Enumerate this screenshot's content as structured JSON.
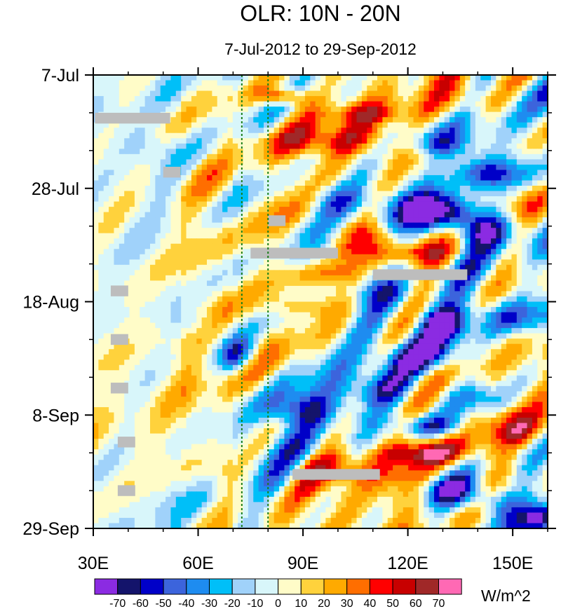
{
  "chart_data": {
    "type": "heatmap",
    "title": "OLR: 10N - 20N",
    "subtitle": "7-Jul-2012 to 29-Sep-2012",
    "x_axis": {
      "range": [
        30,
        160
      ],
      "ticks": [
        {
          "value": 30,
          "label": "30E"
        },
        {
          "value": 60,
          "label": "60E"
        },
        {
          "value": 90,
          "label": "90E"
        },
        {
          "value": 120,
          "label": "120E"
        },
        {
          "value": 150,
          "label": "150E"
        }
      ],
      "minor_step": 10
    },
    "y_axis": {
      "range_days": [
        0,
        84
      ],
      "ticks": [
        {
          "day": 0,
          "label": "7-Jul"
        },
        {
          "day": 21,
          "label": "28-Jul"
        },
        {
          "day": 42,
          "label": "18-Aug"
        },
        {
          "day": 63,
          "label": "8-Sep"
        },
        {
          "day": 84,
          "label": "29-Sep"
        }
      ],
      "minor_step_days": 7
    },
    "reference_lines_lon": [
      72.5,
      80
    ],
    "missing_data": [
      {
        "lon": [
          30.5,
          52
        ],
        "day": [
          7,
          9
        ]
      },
      {
        "lon": [
          50,
          55
        ],
        "day": [
          17,
          19
        ]
      },
      {
        "lon": [
          80,
          85
        ],
        "day": [
          26,
          28
        ]
      },
      {
        "lon": [
          75,
          100
        ],
        "day": [
          32,
          34
        ]
      },
      {
        "lon": [
          110,
          137
        ],
        "day": [
          36,
          38
        ]
      },
      {
        "lon": [
          35,
          40
        ],
        "day": [
          39,
          41
        ]
      },
      {
        "lon": [
          35,
          40
        ],
        "day": [
          48,
          50
        ]
      },
      {
        "lon": [
          35,
          40
        ],
        "day": [
          57,
          59
        ]
      },
      {
        "lon": [
          37,
          42
        ],
        "day": [
          67,
          69
        ]
      },
      {
        "lon": [
          87,
          112
        ],
        "day": [
          73,
          75
        ]
      },
      {
        "lon": [
          37,
          42
        ],
        "day": [
          76,
          78
        ]
      }
    ],
    "colorbar": {
      "unit": "W/m^2",
      "levels": [
        "-70",
        "-60",
        "-50",
        "-40",
        "-30",
        "-20",
        "-10",
        "0",
        "10",
        "20",
        "30",
        "40",
        "50",
        "60",
        "70"
      ],
      "colors": [
        "#8b2be2",
        "#14146b",
        "#0000c8",
        "#3c64dc",
        "#1e8cf0",
        "#00bff8",
        "#a0d2fa",
        "#d8f6fa",
        "#fffcc8",
        "#ffd23c",
        "#ffaa00",
        "#ff6e00",
        "#ff0000",
        "#c80000",
        "#a02828",
        "#ff69b4"
      ]
    }
  }
}
